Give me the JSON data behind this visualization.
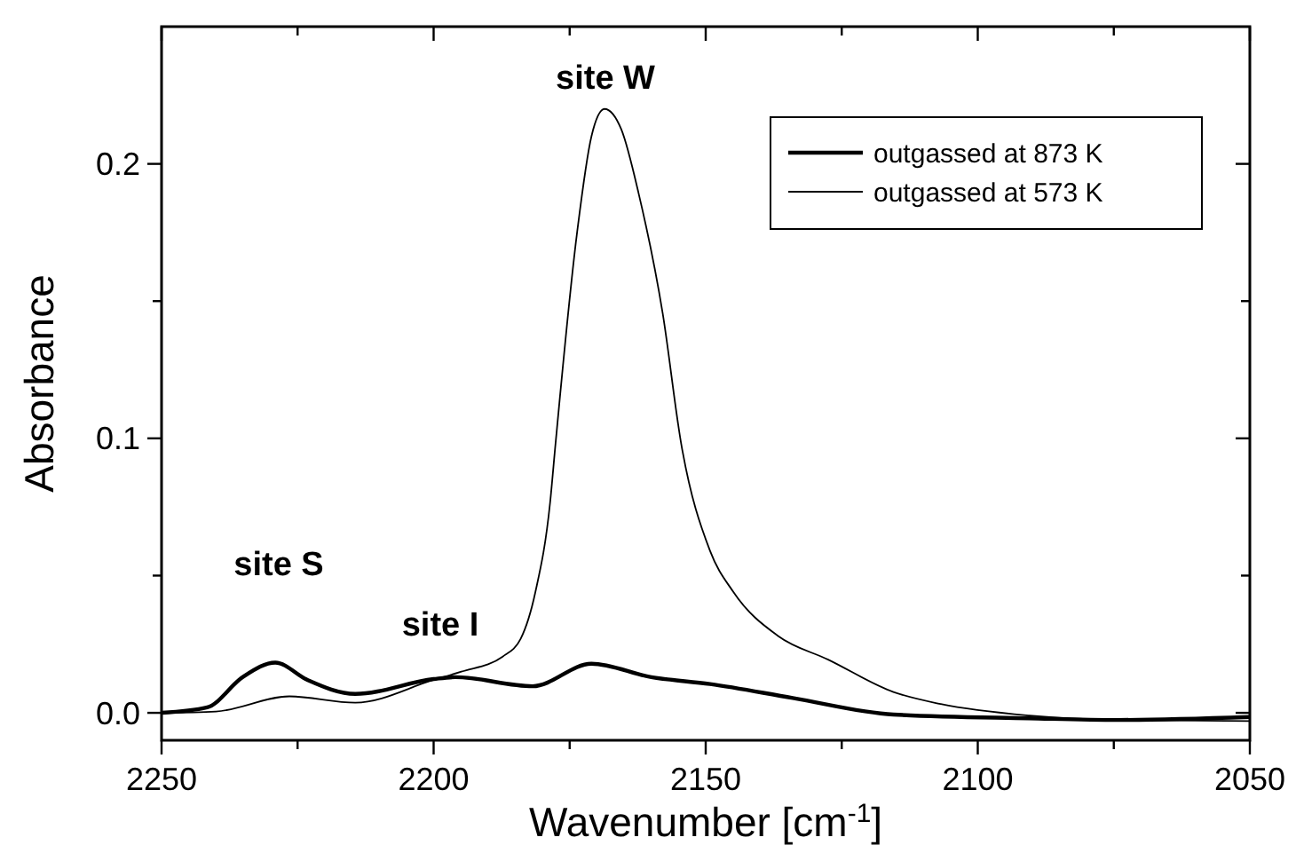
{
  "chart_data": {
    "type": "line",
    "xlabel": "Wavenumber [cm$^{-1}$]",
    "ylabel": "Absorbance",
    "xlim": [
      2250,
      2050
    ],
    "ylim": [
      -0.01,
      0.25
    ],
    "xticks": [
      2250,
      {
        "value": 2225,
        "label": null
      },
      2200,
      {
        "value": 2175,
        "label": null
      },
      2150,
      {
        "value": 2125,
        "label": null
      },
      2100,
      {
        "value": 2075,
        "label": null
      },
      2050
    ],
    "yticks": [
      {
        "value": 0,
        "label": "0.0"
      },
      {
        "value": 0.05,
        "label": null
      },
      0.1,
      {
        "value": 0.15,
        "label": null
      },
      0.2
    ],
    "legend": "top right",
    "grid": false,
    "series": [
      {
        "name": "outgassed at 873 K",
        "color": "#000000",
        "x": [
          2250,
          2241.6,
          2235.1,
          2229.1,
          2223.2,
          2214.4,
          2200,
          2196,
          2181.8,
          2171,
          2160,
          2149.2,
          2134,
          2115.5,
          2090.5,
          2074.2,
          2050
        ],
        "values": [
          0,
          0.002,
          0.013,
          0.0183,
          0.012,
          0.0069,
          0.0123,
          0.013,
          0.0097,
          0.0179,
          0.013,
          0.0105,
          0.0054,
          -0.0006,
          -0.002,
          -0.0026,
          -0.0015
        ]
      },
      {
        "name": "outgassed at 573 K",
        "color": "#000000",
        "x": [
          2250,
          2240,
          2226.5,
          2214.4,
          2200,
          2194.9,
          2187.3,
          2184,
          2181.3,
          2178.6,
          2177.6,
          2173.7,
          2171,
          2168.6,
          2165.5,
          2162.3,
          2157.9,
          2154.5,
          2149.2,
          2144.9,
          2136.7,
          2127.5,
          2115.5,
          2106.8,
          2090.5,
          2074.2,
          2050
        ],
        "values": [
          0,
          0.0005,
          0.006,
          0.0037,
          0.012,
          0.015,
          0.0205,
          0.027,
          0.044,
          0.0765,
          0.098,
          0.174,
          0.21,
          0.22,
          0.2125,
          0.189,
          0.1455,
          0.098,
          0.059,
          0.044,
          0.028,
          0.0194,
          0.0076,
          0.0032,
          -0.001,
          -0.0026,
          -0.003
        ]
      }
    ],
    "annotations": [
      "site S",
      "site I",
      "site W"
    ]
  }
}
